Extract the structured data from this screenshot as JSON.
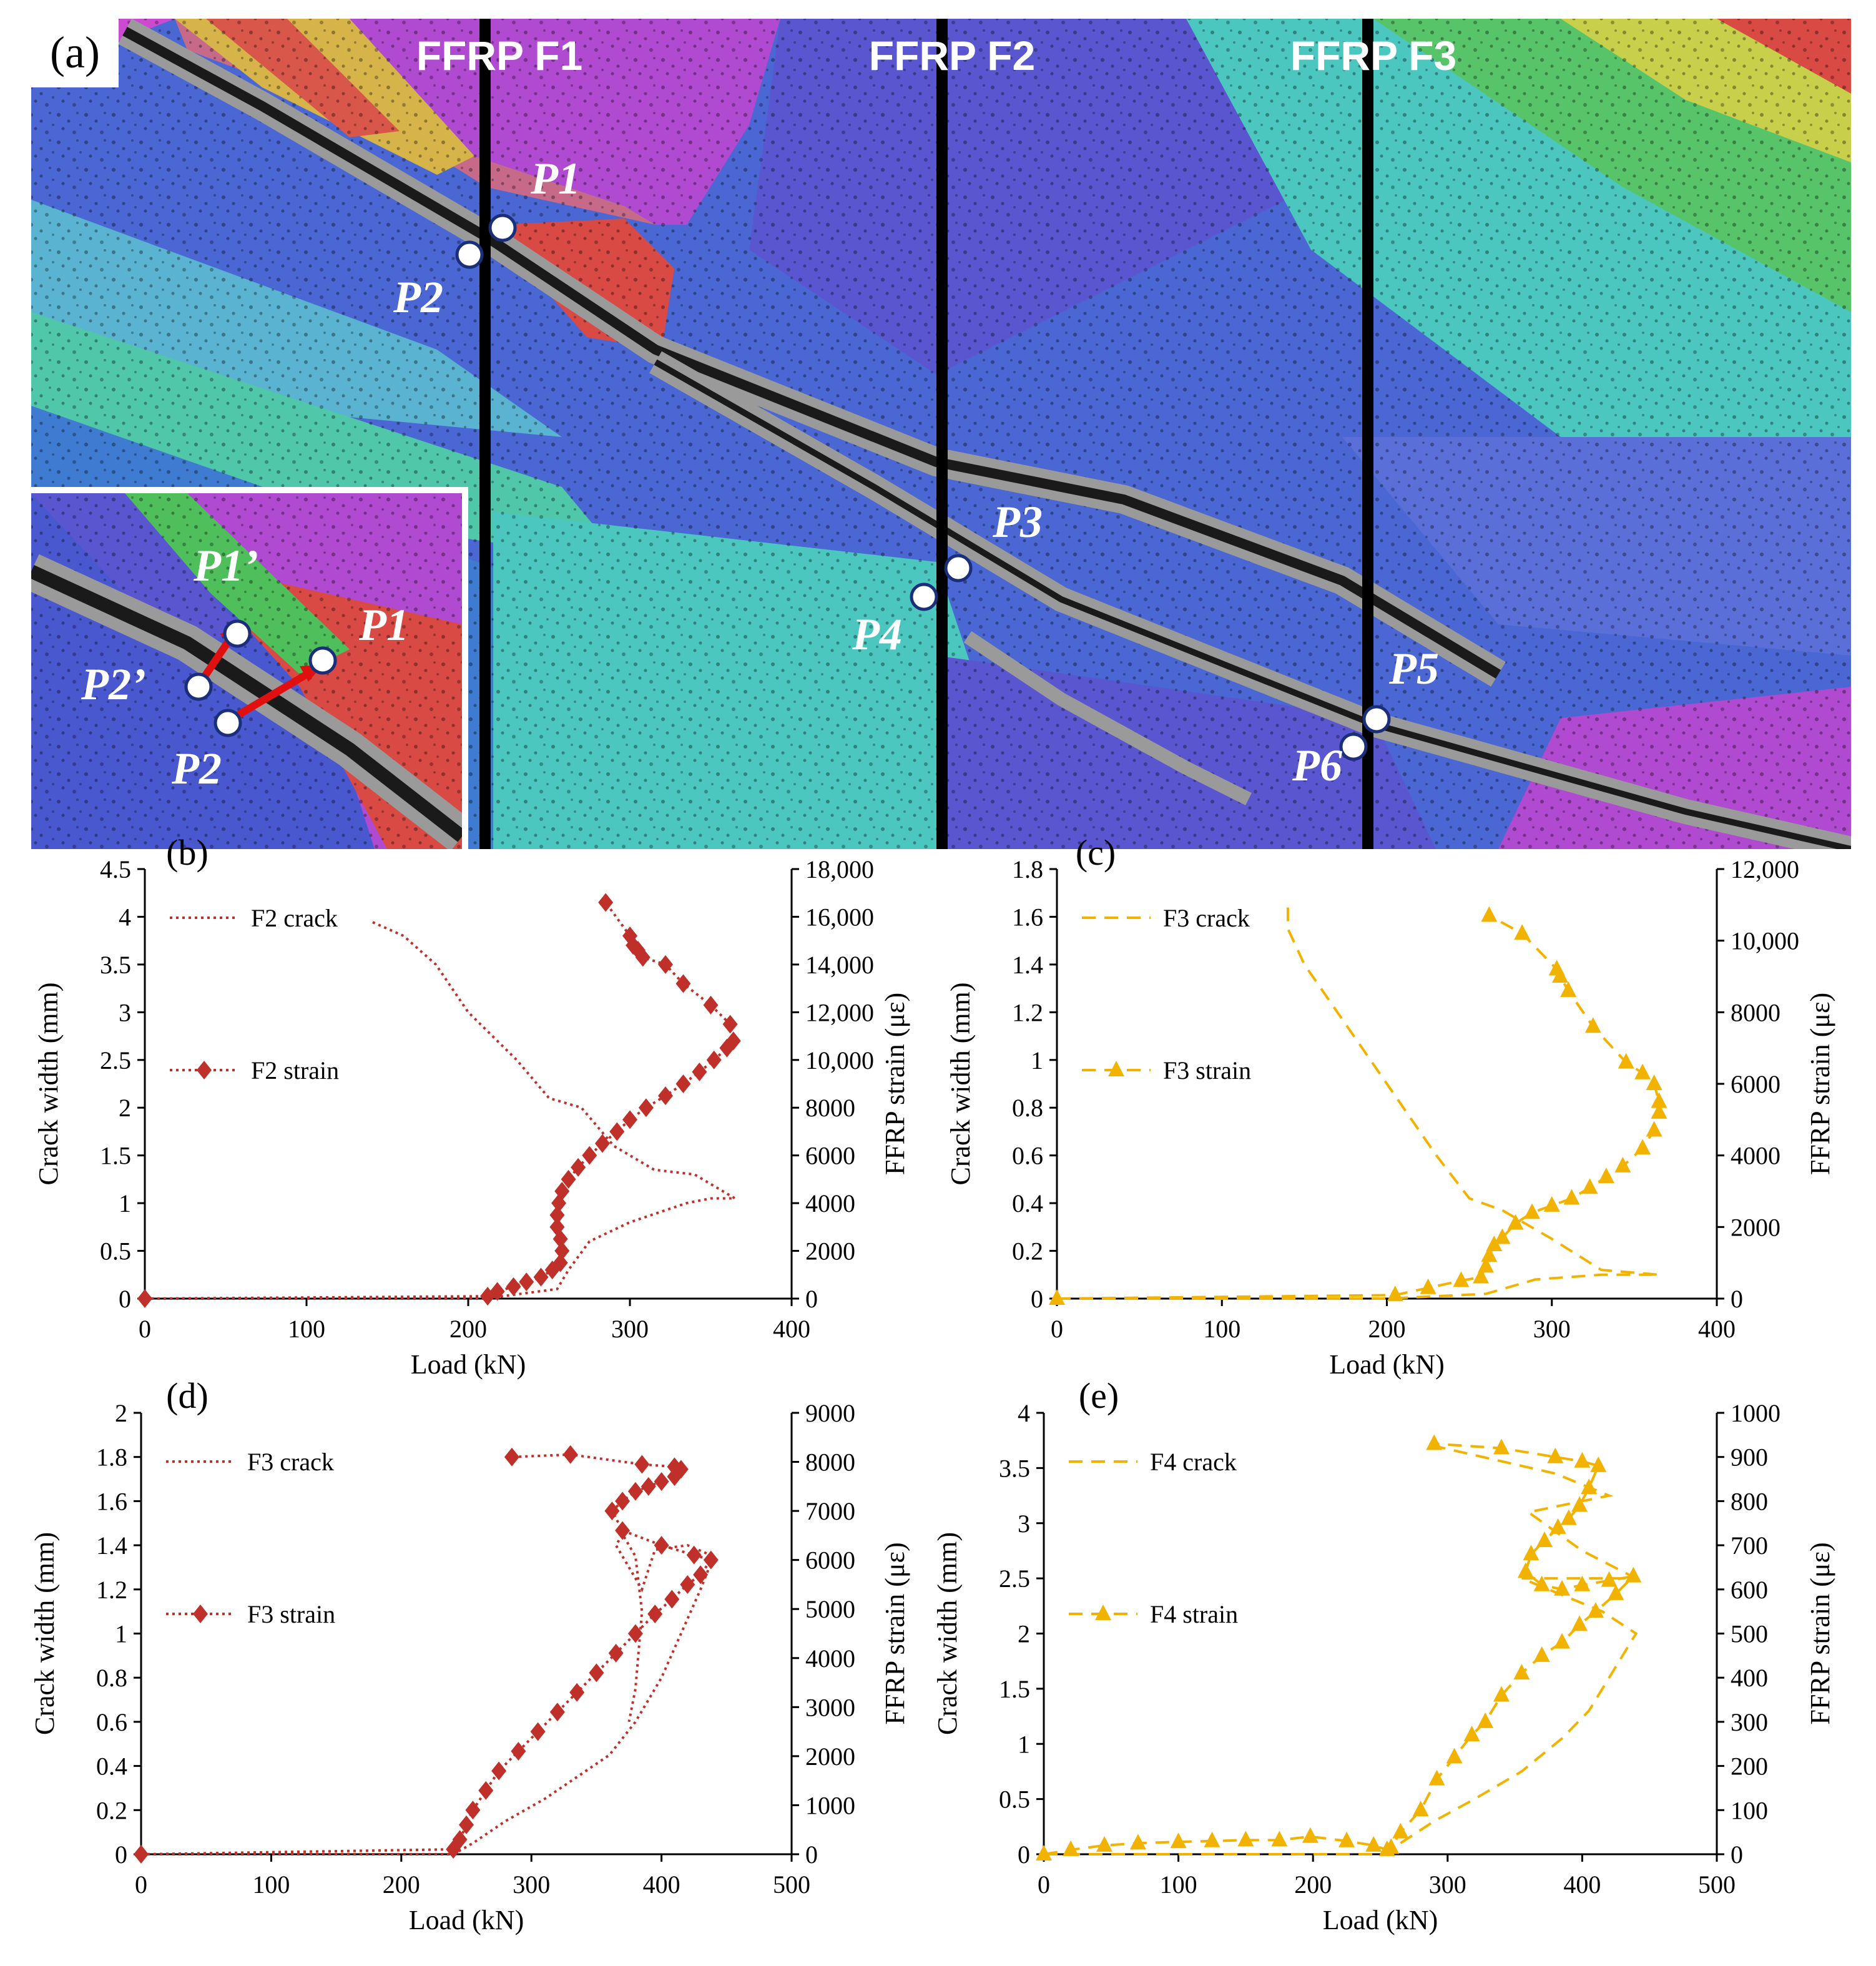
{
  "panel_a": {
    "label": "(a)",
    "bands": [
      "FFRP F1",
      "FFRP F2",
      "FFRP F3"
    ],
    "points": [
      "P1",
      "P2",
      "P3",
      "P4",
      "P5",
      "P6"
    ],
    "inset_points": [
      "P1’",
      "P2’",
      "P1",
      "P2"
    ],
    "colors": {
      "red": "#d94a44",
      "orange": "#e0a040",
      "yellow": "#c8cf4a",
      "green": "#4fbf5c",
      "cyan": "#4cc7c0",
      "blue": "#3f5fd0",
      "purple": "#6a44cf",
      "magenta": "#b04ad0",
      "crack": "#1a1a1a"
    }
  },
  "chart_data": [
    {
      "panel": "(b)",
      "type": "line",
      "xlabel": "Load (kN)",
      "ylabel": "Crack width (mm)",
      "y2label": "FFRP strain (με)",
      "xlim": [
        0,
        400
      ],
      "ylim": [
        0,
        4.5
      ],
      "y2lim": [
        0,
        18000
      ],
      "xticks": [
        "0",
        "100",
        "200",
        "300",
        "400"
      ],
      "yticks": [
        "0",
        "0.5",
        "1",
        "1.5",
        "2",
        "2.5",
        "3",
        "3.5",
        "4",
        "4.5"
      ],
      "y2ticks": [
        "0",
        "2000",
        "4000",
        "6000",
        "8000",
        "10,000",
        "12,000",
        "14,000",
        "16,000",
        "18,000"
      ],
      "color": "#c0302a",
      "legend": [
        "F2 crack",
        "F2 strain"
      ],
      "series": [
        {
          "name": "F2 crack",
          "axis": "left",
          "style": "dotted",
          "marker": "none",
          "x": [
            0,
            210,
            255,
            262,
            275,
            300,
            335,
            350,
            365,
            340,
            315,
            290,
            270,
            250,
            230,
            200,
            180,
            160,
            140
          ],
          "y": [
            0,
            0,
            0.1,
            0.3,
            0.6,
            0.8,
            1.0,
            1.05,
            1.05,
            1.3,
            1.35,
            1.6,
            2.0,
            2.1,
            2.5,
            3.0,
            3.5,
            3.8,
            3.95
          ]
        },
        {
          "name": "F2 strain",
          "axis": "right",
          "style": "dotted",
          "marker": "diamond",
          "x": [
            0,
            212,
            218,
            228,
            236,
            245,
            252,
            257,
            258,
            257,
            255,
            255,
            256,
            258,
            262,
            268,
            275,
            283,
            292,
            300,
            310,
            322,
            333,
            343,
            352,
            360,
            364,
            362,
            350,
            333,
            322,
            308,
            305,
            302,
            300,
            285
          ],
          "y": [
            0,
            100,
            300,
            500,
            700,
            900,
            1200,
            1500,
            2000,
            2500,
            3000,
            3500,
            4000,
            4500,
            5000,
            5500,
            6000,
            6500,
            7000,
            7500,
            8000,
            8500,
            9000,
            9500,
            10000,
            10500,
            10800,
            11500,
            12300,
            13200,
            14000,
            14300,
            14600,
            14800,
            15200,
            16600
          ]
        }
      ]
    },
    {
      "panel": "(c)",
      "type": "line",
      "xlabel": "Load (kN)",
      "ylabel": "Crack width (mm)",
      "y2label": "FFRP strain (με)",
      "xlim": [
        0,
        400
      ],
      "ylim": [
        0,
        1.8
      ],
      "y2lim": [
        0,
        12000
      ],
      "xticks": [
        "0",
        "100",
        "200",
        "300",
        "400"
      ],
      "yticks": [
        "0",
        "0.2",
        "0.4",
        "0.6",
        "0.8",
        "1",
        "1.2",
        "1.4",
        "1.6",
        "1.8"
      ],
      "y2ticks": [
        "0",
        "2000",
        "4000",
        "6000",
        "8000",
        "10,000",
        "12,000"
      ],
      "color": "#f2b300",
      "legend": [
        "F3 crack",
        "F3 strain"
      ],
      "series": [
        {
          "name": "F3 crack",
          "axis": "left",
          "style": "dashed",
          "marker": "none",
          "x": [
            0,
            200,
            260,
            290,
            330,
            365,
            330,
            300,
            270,
            250,
            230,
            210,
            190,
            170,
            150,
            140,
            140
          ],
          "y": [
            0,
            0,
            0.02,
            0.08,
            0.1,
            0.1,
            0.12,
            0.25,
            0.37,
            0.42,
            0.6,
            0.8,
            1.0,
            1.2,
            1.4,
            1.55,
            1.65
          ]
        },
        {
          "name": "F3 strain",
          "axis": "right",
          "style": "dashed",
          "marker": "triangle",
          "x": [
            0,
            205,
            225,
            245,
            257,
            260,
            262,
            265,
            270,
            278,
            288,
            300,
            312,
            323,
            333,
            343,
            355,
            362,
            365,
            365,
            362,
            355,
            345,
            325,
            310,
            305,
            303,
            282,
            262
          ],
          "y": [
            0,
            100,
            300,
            500,
            600,
            900,
            1200,
            1500,
            1700,
            2100,
            2400,
            2600,
            2800,
            3100,
            3400,
            3700,
            4200,
            4700,
            5200,
            5500,
            6000,
            6300,
            6600,
            7600,
            8600,
            9000,
            9200,
            10200,
            10700
          ]
        }
      ]
    },
    {
      "panel": "(d)",
      "type": "line",
      "xlabel": "Load (kN)",
      "ylabel": "Crack width (mm)",
      "y2label": "FFRP strain (με)",
      "xlim": [
        0,
        500
      ],
      "ylim": [
        0,
        2
      ],
      "y2lim": [
        0,
        9000
      ],
      "xticks": [
        "0",
        "100",
        "200",
        "300",
        "400",
        "500"
      ],
      "yticks": [
        "0",
        "0.2",
        "0.4",
        "0.6",
        "0.8",
        "1",
        "1.2",
        "1.4",
        "1.6",
        "1.8",
        "2"
      ],
      "y2ticks": [
        "0",
        "1000",
        "2000",
        "3000",
        "4000",
        "5000",
        "6000",
        "7000",
        "8000",
        "9000"
      ],
      "color": "#c0302a",
      "legend": [
        "F3 crack",
        "F3 strain"
      ],
      "series": [
        {
          "name": "F3 crack",
          "axis": "left",
          "style": "dotted",
          "marker": "none",
          "x": [
            0,
            240,
            255,
            280,
            310,
            335,
            360,
            380,
            400,
            415,
            430,
            440,
            420,
            395,
            385,
            375,
            365,
            370,
            380,
            385,
            380,
            375
          ],
          "y": [
            0,
            0,
            0.05,
            0.15,
            0.25,
            0.35,
            0.45,
            0.6,
            0.8,
            1.0,
            1.2,
            1.35,
            1.4,
            1.38,
            1.2,
            1.3,
            1.4,
            1.45,
            1.35,
            1.1,
            0.75,
            0.6
          ]
        },
        {
          "name": "F3 strain",
          "axis": "right",
          "style": "dotted",
          "marker": "diamond",
          "x": [
            0,
            240,
            245,
            250,
            255,
            265,
            275,
            290,
            305,
            320,
            335,
            350,
            365,
            380,
            395,
            408,
            420,
            430,
            438,
            425,
            400,
            370,
            362,
            370,
            380,
            390,
            400,
            410,
            415,
            410,
            385,
            330,
            285
          ],
          "y": [
            0,
            100,
            300,
            600,
            900,
            1300,
            1700,
            2100,
            2500,
            2900,
            3300,
            3700,
            4100,
            4500,
            4900,
            5200,
            5500,
            5700,
            6000,
            6100,
            6300,
            6600,
            7000,
            7200,
            7400,
            7500,
            7600,
            7700,
            7850,
            7900,
            7950,
            8150,
            8100
          ]
        }
      ]
    },
    {
      "panel": "(e)",
      "type": "line",
      "xlabel": "Load (kN)",
      "ylabel": "Crack width (mm)",
      "y2label": "FFRP strain (με)",
      "xlim": [
        0,
        500
      ],
      "ylim": [
        0,
        4
      ],
      "y2lim": [
        0,
        1000
      ],
      "xticks": [
        "0",
        "100",
        "200",
        "300",
        "400",
        "500"
      ],
      "yticks": [
        "0",
        "0.5",
        "1",
        "1.5",
        "2",
        "2.5",
        "3",
        "3.5",
        "4"
      ],
      "y2ticks": [
        "0",
        "100",
        "200",
        "300",
        "400",
        "500",
        "600",
        "700",
        "800",
        "900",
        "1000"
      ],
      "color": "#f2b300",
      "legend": [
        "F4 crack",
        "F4 strain"
      ],
      "series": [
        {
          "name": "F4 crack",
          "axis": "left",
          "style": "dashed",
          "marker": "none",
          "x": [
            0,
            250,
            265,
            290,
            320,
            355,
            385,
            405,
            425,
            440,
            415,
            355,
            400,
            440,
            400,
            360,
            420,
            380,
            290
          ],
          "y": [
            0,
            0,
            0.1,
            0.3,
            0.5,
            0.75,
            1.05,
            1.3,
            1.7,
            2.0,
            2.2,
            2.5,
            2.5,
            2.5,
            2.75,
            3.1,
            3.25,
            3.45,
            3.7
          ]
        },
        {
          "name": "F4 strain",
          "axis": "right",
          "style": "dashed",
          "marker": "triangle",
          "x": [
            0,
            20,
            45,
            70,
            100,
            125,
            150,
            175,
            198,
            225,
            245,
            255,
            258,
            265,
            280,
            292,
            305,
            318,
            328,
            340,
            355,
            370,
            385,
            398,
            410,
            425,
            438,
            420,
            400,
            385,
            370,
            358,
            362,
            372,
            382,
            390,
            398,
            405,
            412,
            400,
            380,
            340,
            290
          ],
          "y": [
            0,
            10,
            20,
            25,
            28,
            30,
            32,
            32,
            40,
            30,
            20,
            10,
            15,
            50,
            100,
            170,
            220,
            270,
            300,
            360,
            410,
            450,
            480,
            520,
            550,
            590,
            630,
            620,
            610,
            600,
            610,
            640,
            680,
            710,
            740,
            760,
            790,
            830,
            880,
            890,
            900,
            920,
            930
          ]
        }
      ]
    }
  ]
}
